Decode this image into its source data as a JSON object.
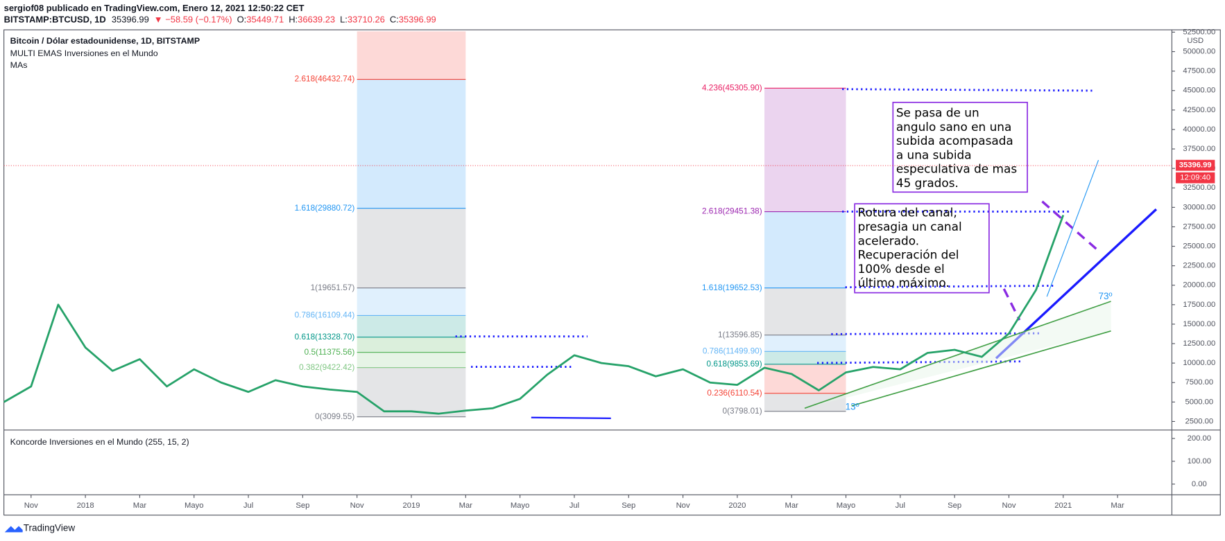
{
  "header": {
    "author_line": "sergiof08 publicado en TradingView.com, Enero 12, 2021 12:50:22 CET",
    "symbol": "BITSTAMP:BTCUSD, 1D",
    "last": "35396.99",
    "change": "▼ −58.59 (−0.17%)",
    "open_label": "O:",
    "open": "35449.71",
    "high_label": "H:",
    "high": "36639.23",
    "low_label": "L:",
    "low": "33710.26",
    "close_label": "C:",
    "close": "35396.99"
  },
  "chart_data": {
    "type": "line",
    "legend_lines": [
      "Bitcoin / Dólar estadounidense, 1D, BITSTAMP",
      "MULTI EMAS Inversiones en el Mundo",
      "MAs"
    ],
    "x": [
      "2017-10",
      "2017-11",
      "2017-12",
      "2018-01",
      "2018-02",
      "2018-03",
      "2018-04",
      "2018-05",
      "2018-06",
      "2018-07",
      "2018-08",
      "2018-09",
      "2018-10",
      "2018-11",
      "2018-12",
      "2019-01",
      "2019-02",
      "2019-03",
      "2019-04",
      "2019-05",
      "2019-06",
      "2019-07",
      "2019-08",
      "2019-09",
      "2019-10",
      "2019-11",
      "2019-12",
      "2020-01",
      "2020-02",
      "2020-03",
      "2020-04",
      "2020-05",
      "2020-06",
      "2020-07",
      "2020-08",
      "2020-09",
      "2020-10",
      "2020-11",
      "2020-12",
      "2021-01"
    ],
    "series": [
      {
        "color": "#26a269",
        "values": [
          5000,
          7000,
          17500,
          12000,
          9000,
          10500,
          7000,
          9200,
          7500,
          6300,
          7800,
          7000,
          6600,
          6300,
          3800,
          3800,
          3500,
          3900,
          4200,
          5400,
          8500,
          11000,
          10000,
          9600,
          8300,
          9200,
          7500,
          7200,
          9400,
          8600,
          6500,
          8800,
          9500,
          9200,
          11300,
          11700,
          10800,
          13800,
          19400,
          29000
        ]
      }
    ],
    "xlim": [
      "2017-10",
      "2021-05"
    ],
    "xticks": [
      {
        "value": "2017-11",
        "label": "Nov"
      },
      {
        "value": "2018-01",
        "label": "2018"
      },
      {
        "value": "2018-03",
        "label": "Mar"
      },
      {
        "value": "2018-05",
        "label": "Mayo"
      },
      {
        "value": "2018-07",
        "label": "Jul"
      },
      {
        "value": "2018-09",
        "label": "Sep"
      },
      {
        "value": "2018-11",
        "label": "Nov"
      },
      {
        "value": "2019-01",
        "label": "2019"
      },
      {
        "value": "2019-03",
        "label": "Mar"
      },
      {
        "value": "2019-05",
        "label": "Mayo"
      },
      {
        "value": "2019-07",
        "label": "Jul"
      },
      {
        "value": "2019-09",
        "label": "Sep"
      },
      {
        "value": "2019-11",
        "label": "Nov"
      },
      {
        "value": "2020-01",
        "label": "2020"
      },
      {
        "value": "2020-03",
        "label": "Mar"
      },
      {
        "value": "2020-05",
        "label": "Mayo"
      },
      {
        "value": "2020-07",
        "label": "Jul"
      },
      {
        "value": "2020-09",
        "label": "Sep"
      },
      {
        "value": "2020-11",
        "label": "Nov"
      },
      {
        "value": "2021-01",
        "label": "2021"
      },
      {
        "value": "2021-03",
        "label": "Mar"
      }
    ],
    "ylim": [
      1700,
      52600
    ],
    "yticks": [
      {
        "value": 2500,
        "label": "2500.00"
      },
      {
        "value": 5000,
        "label": "5000.00"
      },
      {
        "value": 7500,
        "label": "7500.00"
      },
      {
        "value": 10000,
        "label": "10000.00"
      },
      {
        "value": 12500,
        "label": "12500.00"
      },
      {
        "value": 15000,
        "label": "15000.00"
      },
      {
        "value": 17500,
        "label": "17500.00"
      },
      {
        "value": 20000,
        "label": "20000.00"
      },
      {
        "value": 22500,
        "label": "22500.00"
      },
      {
        "value": 25000,
        "label": "25000.00"
      },
      {
        "value": 27500,
        "label": "27500.00"
      },
      {
        "value": 30000,
        "label": "30000.00"
      },
      {
        "value": 32500,
        "label": "32500.00"
      },
      {
        "value": 35000,
        "label": "35000.00"
      },
      {
        "value": 37500,
        "label": "37500.00"
      },
      {
        "value": 40000,
        "label": "40000.00"
      },
      {
        "value": 42500,
        "label": "42500.00"
      },
      {
        "value": 45000,
        "label": "45000.00"
      },
      {
        "value": 47500,
        "label": "47500.00"
      },
      {
        "value": 50000,
        "label": "50000.00"
      },
      {
        "value": 52500,
        "label": "52500.00"
      }
    ],
    "currency": "USD",
    "price_tag": {
      "value": 35396.99,
      "label": "35396.99",
      "countdown": "12:09:40",
      "color": "#f23645"
    },
    "fib_sets": [
      {
        "x": [
          "2018-11",
          "2019-03"
        ],
        "fill_above": true,
        "levels": [
          {
            "label": "0(3099.55)",
            "value": 3099.55,
            "color": "#787b86"
          },
          {
            "label": "0.382(9422.42)",
            "value": 9422.42,
            "color": "#81c784"
          },
          {
            "label": "0.5(11375.56)",
            "value": 11375.56,
            "color": "#4caf50"
          },
          {
            "label": "0.618(13328.70)",
            "value": 13328.7,
            "color": "#009688"
          },
          {
            "label": "0.786(16109.44)",
            "value": 16109.44,
            "color": "#64b5f6"
          },
          {
            "label": "1(19651.57)",
            "value": 19651.57,
            "color": "#787b86"
          },
          {
            "label": "1.618(29880.72)",
            "value": 29880.72,
            "color": "#2196f3"
          },
          {
            "label": "2.618(46432.74)",
            "value": 46432.74,
            "color": "#f44336"
          }
        ]
      },
      {
        "x": [
          "2020-02",
          "2020-05"
        ],
        "fill_above": false,
        "levels": [
          {
            "label": "0(3798.01)",
            "value": 3798.01,
            "color": "#787b86"
          },
          {
            "label": "0.236(6110.54)",
            "value": 6110.54,
            "color": "#f44336"
          },
          {
            "label": "0.618(9853.69)",
            "value": 9853.69,
            "color": "#009688"
          },
          {
            "label": "0.786(11499.90)",
            "value": 11499.9,
            "color": "#64b5f6"
          },
          {
            "label": "1(13596.85)",
            "value": 13596.85,
            "color": "#787b86"
          },
          {
            "label": "1.618(19652.53)",
            "value": 19652.53,
            "color": "#2196f3"
          },
          {
            "label": "2.618(29451.38)",
            "value": 29451.38,
            "color": "#9c27b0"
          },
          {
            "label": "4.236(45305.90)",
            "value": 45305.9,
            "color": "#e91e63"
          }
        ]
      }
    ],
    "notes": [
      [
        "Se pasa de un",
        "angulo sano en una",
        "subida acompasada",
        "a una subida",
        "especulativa de mas",
        "45 grados."
      ],
      [
        "Rotura del canal,",
        "presagia un canal",
        "acelerado.",
        "Recuperación del",
        "100% desde el",
        "último máximo."
      ]
    ],
    "angle_labels": [
      "73º",
      "13º"
    ],
    "indicator": {
      "title": "Koncorde Inversiones en el Mundo (255, 15, 2)",
      "ylim": [
        -40,
        230
      ],
      "yticks": [
        {
          "value": 0,
          "label": "0.00"
        },
        {
          "value": 100,
          "label": "100.00"
        },
        {
          "value": 200,
          "label": "200.00"
        }
      ]
    }
  },
  "footer": {
    "brand": "TradingView"
  }
}
